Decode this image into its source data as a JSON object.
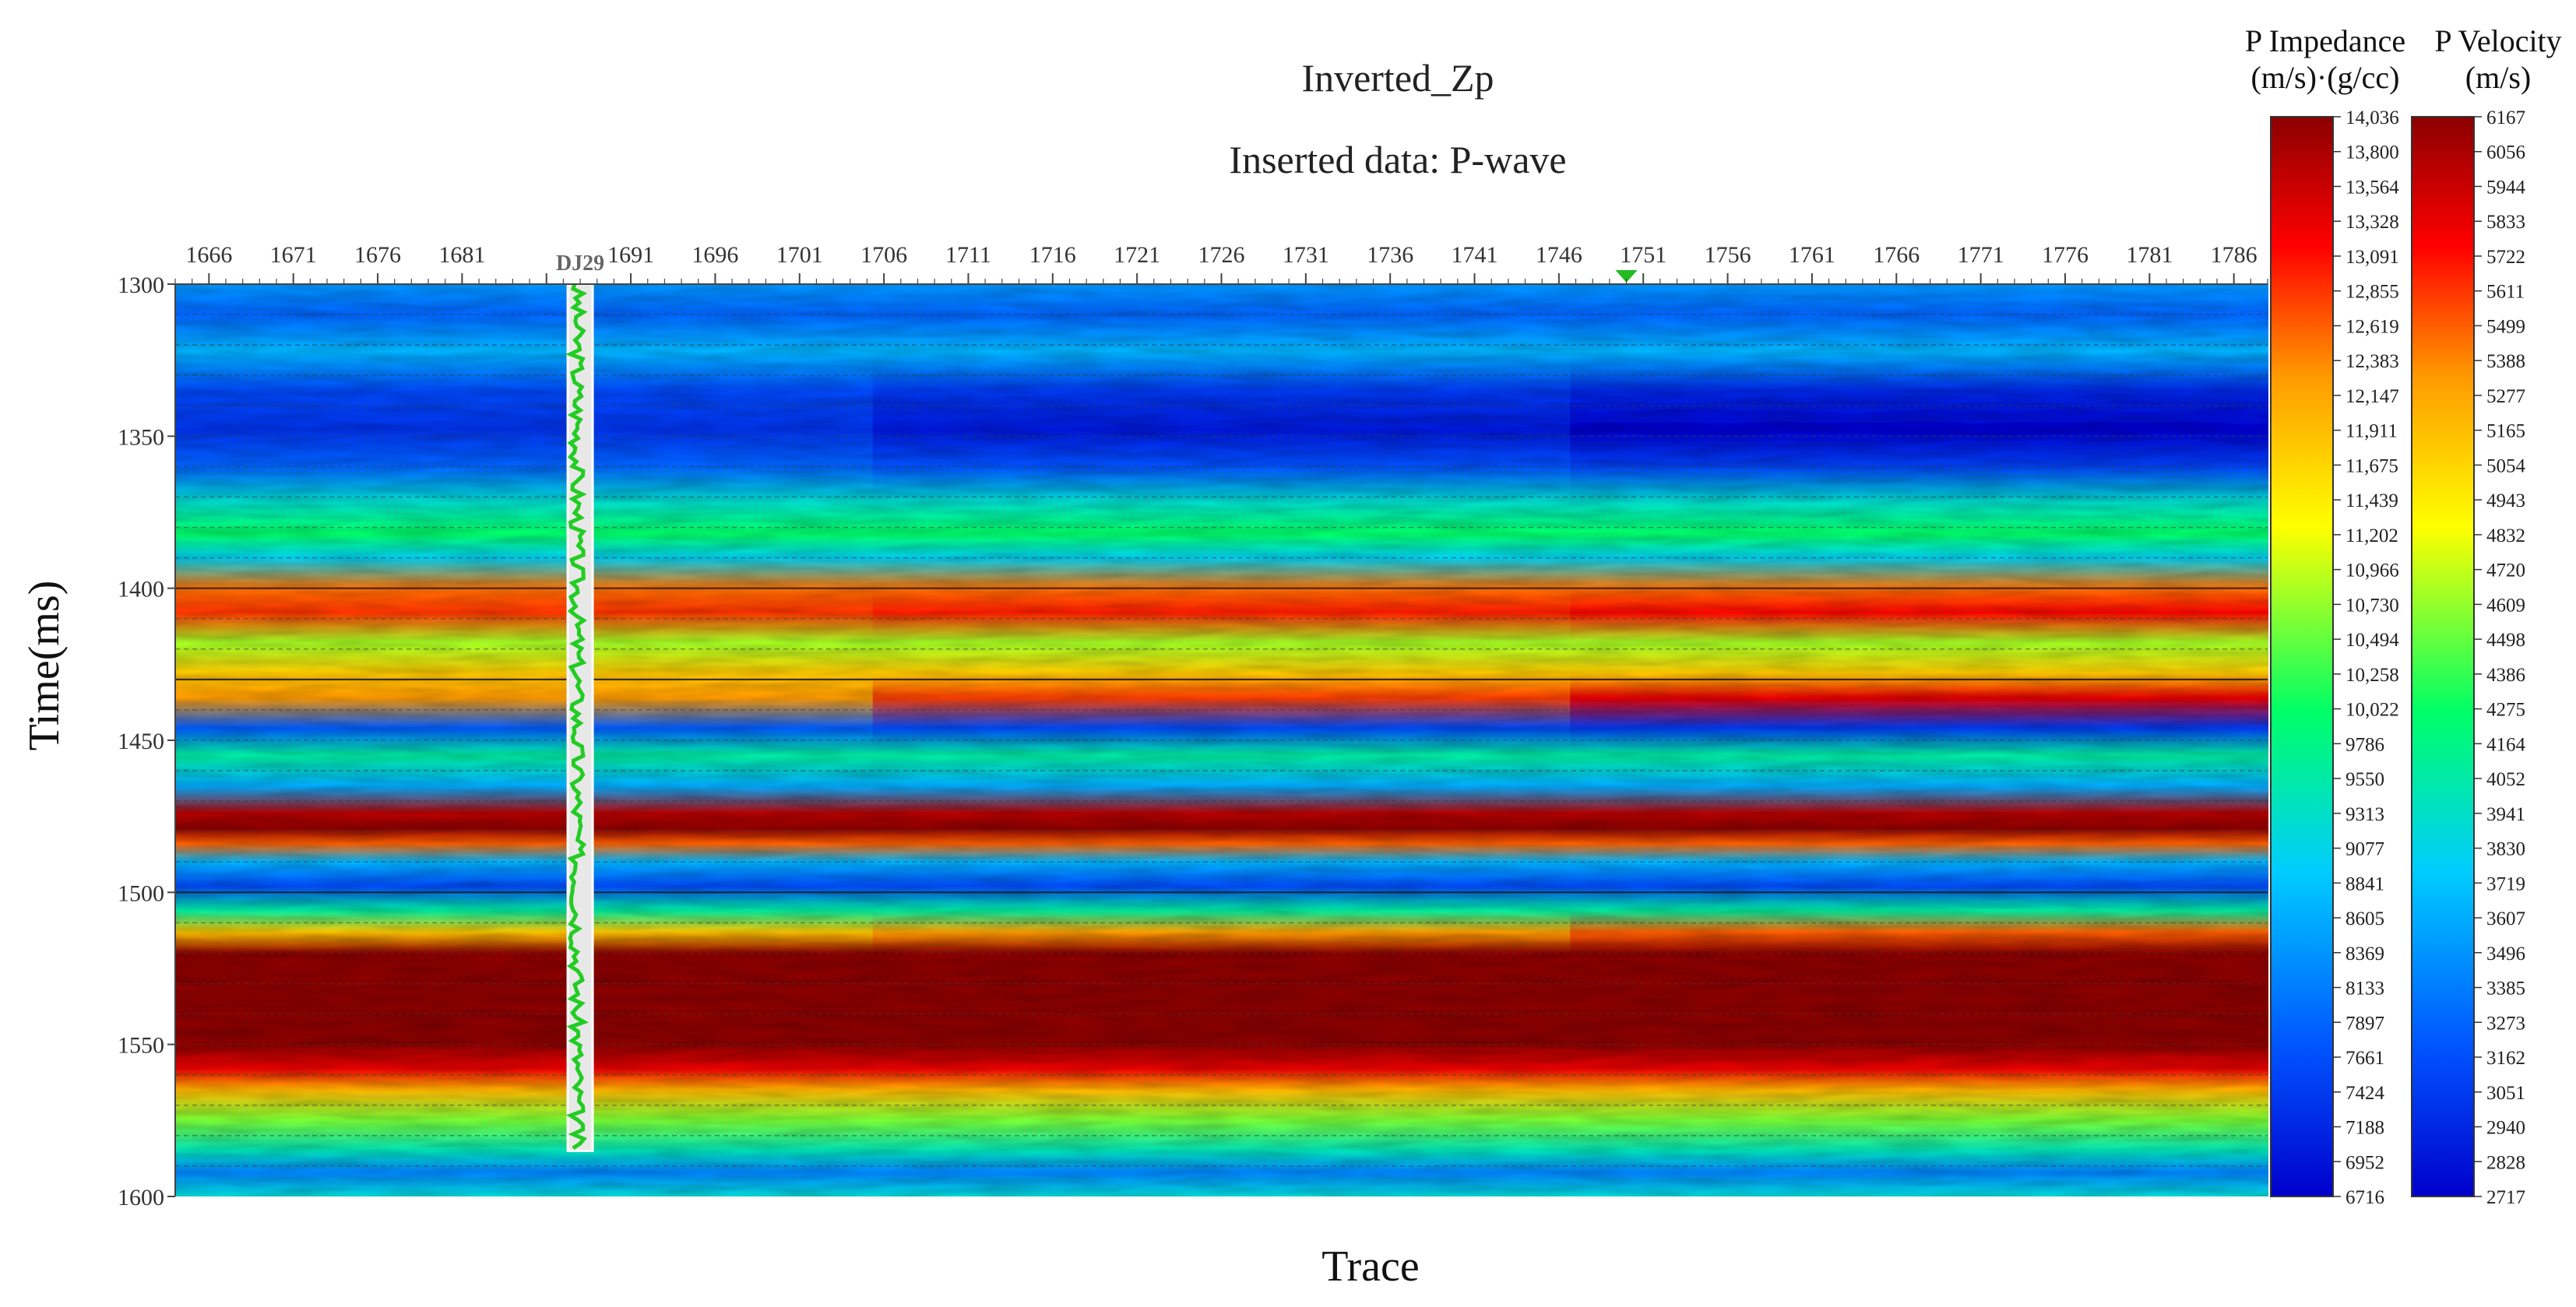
{
  "chart_data": {
    "type": "heatmap",
    "title": "Inverted_Zp",
    "subtitle": "Inserted data: P-wave",
    "xlabel": "Trace",
    "ylabel": "Time(ms)",
    "x_tick_labels": [
      "1666",
      "1671",
      "1676",
      "1681",
      "1691",
      "1696",
      "1701",
      "1706",
      "1711",
      "1716",
      "1721",
      "1726",
      "1731",
      "1736",
      "1741",
      "1746",
      "1751",
      "1756",
      "1761",
      "1766",
      "1771",
      "1776",
      "1781",
      "1786"
    ],
    "xlim": [
      1664,
      1788
    ],
    "y_tick_labels": [
      "1300",
      "1350",
      "1400",
      "1450",
      "1500",
      "1550",
      "1600"
    ],
    "ylim": [
      1300,
      1600
    ],
    "well": {
      "name": "DJ29",
      "trace": 1688,
      "time_range": [
        1300,
        1585
      ]
    },
    "marker": {
      "trace": 1750
    },
    "horizon_times": [
      1310,
      1320,
      1330,
      1340,
      1350,
      1360,
      1370,
      1380,
      1390,
      1400,
      1410,
      1420,
      1430,
      1440,
      1450,
      1460,
      1470,
      1480,
      1490,
      1500,
      1510,
      1520,
      1530,
      1540,
      1550,
      1560,
      1570,
      1580,
      1590
    ],
    "solid_horizon_times": [
      1400,
      1430,
      1500
    ],
    "layers": [
      {
        "t": 1300,
        "v": 8400,
        "slope": 0
      },
      {
        "t": 1310,
        "v": 7900,
        "slope": 0
      },
      {
        "t": 1322,
        "v": 8700,
        "slope": 0
      },
      {
        "t": 1335,
        "v": 7400,
        "slope": -300
      },
      {
        "t": 1348,
        "v": 7000,
        "slope": -500
      },
      {
        "t": 1360,
        "v": 7700,
        "slope": -300
      },
      {
        "t": 1372,
        "v": 9300,
        "slope": 0
      },
      {
        "t": 1382,
        "v": 10000,
        "slope": 0
      },
      {
        "t": 1390,
        "v": 9000,
        "slope": 0
      },
      {
        "t": 1400,
        "v": 12500,
        "slope": 0
      },
      {
        "t": 1408,
        "v": 13000,
        "slope": 200
      },
      {
        "t": 1418,
        "v": 10800,
        "slope": 0
      },
      {
        "t": 1428,
        "v": 11800,
        "slope": 0
      },
      {
        "t": 1436,
        "v": 12800,
        "slope": 800
      },
      {
        "t": 1446,
        "v": 7600,
        "slope": -300
      },
      {
        "t": 1455,
        "v": 9600,
        "slope": 0
      },
      {
        "t": 1465,
        "v": 8600,
        "slope": 0
      },
      {
        "t": 1474,
        "v": 13700,
        "slope": 0
      },
      {
        "t": 1479,
        "v": 14036,
        "slope": 0
      },
      {
        "t": 1484,
        "v": 12600,
        "slope": 0
      },
      {
        "t": 1490,
        "v": 8700,
        "slope": 0
      },
      {
        "t": 1498,
        "v": 7600,
        "slope": 0
      },
      {
        "t": 1506,
        "v": 9600,
        "slope": 0
      },
      {
        "t": 1513,
        "v": 12200,
        "slope": 600
      },
      {
        "t": 1520,
        "v": 14036,
        "slope": 0
      },
      {
        "t": 1550,
        "v": 14036,
        "slope": 0
      },
      {
        "t": 1558,
        "v": 13300,
        "slope": 0
      },
      {
        "t": 1565,
        "v": 12000,
        "slope": 0
      },
      {
        "t": 1575,
        "v": 10600,
        "slope": 0
      },
      {
        "t": 1585,
        "v": 9400,
        "slope": 0
      },
      {
        "t": 1592,
        "v": 8200,
        "slope": 0
      },
      {
        "t": 1600,
        "v": 9200,
        "slope": 0
      }
    ],
    "colorbars": [
      {
        "title_line1": "P Impedance",
        "title_line2": "(m/s)·(g/cc)",
        "min": 6716,
        "max": 14036,
        "tick_labels": [
          "14,036",
          "13,800",
          "13,564",
          "13,328",
          "13,091",
          "12,855",
          "12,619",
          "12,383",
          "12,147",
          "11,911",
          "11,675",
          "11,439",
          "11,202",
          "10,966",
          "10,730",
          "10,494",
          "10,258",
          "10,022",
          "9786",
          "9550",
          "9313",
          "9077",
          "8841",
          "8605",
          "8369",
          "8133",
          "7897",
          "7661",
          "7424",
          "7188",
          "6952",
          "6716"
        ]
      },
      {
        "title_line1": "P Velocity",
        "title_line2": "(m/s)",
        "min": 2717,
        "max": 6167,
        "tick_labels": [
          "6167",
          "6056",
          "5944",
          "5833",
          "5722",
          "5611",
          "5499",
          "5388",
          "5277",
          "5165",
          "5054",
          "4943",
          "4832",
          "4720",
          "4609",
          "4498",
          "4386",
          "4275",
          "4164",
          "4052",
          "3941",
          "3830",
          "3719",
          "3607",
          "3496",
          "3385",
          "3273",
          "3162",
          "3051",
          "2940",
          "2828",
          "2717"
        ]
      }
    ],
    "colormap": [
      "#0000cc",
      "#0055ff",
      "#00ccff",
      "#00ff66",
      "#ffff00",
      "#ff9900",
      "#ff0000",
      "#8b0000"
    ]
  }
}
